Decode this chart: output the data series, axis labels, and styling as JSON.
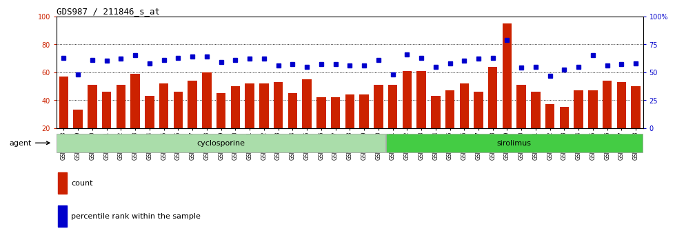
{
  "title": "GDS987 / 211846_s_at",
  "samples": [
    "GSM30418",
    "GSM30419",
    "GSM30420",
    "GSM30421",
    "GSM30422",
    "GSM30423",
    "GSM30424",
    "GSM30425",
    "GSM30426",
    "GSM30427",
    "GSM30428",
    "GSM30429",
    "GSM30430",
    "GSM30431",
    "GSM30432",
    "GSM30433",
    "GSM30434",
    "GSM30435",
    "GSM30436",
    "GSM30437",
    "GSM30438",
    "GSM30439",
    "GSM30440",
    "GSM30441",
    "GSM30442",
    "GSM30443",
    "GSM30444",
    "GSM30445",
    "GSM30446",
    "GSM30447",
    "GSM30448",
    "GSM30449",
    "GSM30450",
    "GSM30451",
    "GSM30452",
    "GSM30453",
    "GSM30454",
    "GSM30455",
    "GSM30456",
    "GSM30457",
    "GSM30458"
  ],
  "counts": [
    57,
    33,
    51,
    46,
    51,
    59,
    43,
    52,
    46,
    54,
    60,
    45,
    50,
    52,
    52,
    53,
    45,
    55,
    42,
    42,
    44,
    44,
    51,
    51,
    61,
    61,
    43,
    47,
    52,
    46,
    64,
    95,
    51,
    46,
    37,
    35,
    47,
    47,
    54,
    53,
    50
  ],
  "percentile_ranks": [
    63,
    48,
    61,
    60,
    62,
    65,
    58,
    61,
    63,
    64,
    64,
    59,
    61,
    62,
    62,
    56,
    57,
    55,
    57,
    57,
    56,
    56,
    61,
    48,
    66,
    63,
    55,
    58,
    60,
    62,
    63,
    79,
    54,
    55,
    47,
    52,
    55,
    65,
    56,
    57,
    58
  ],
  "n_cyclosporine": 23,
  "n_sirolimus": 18,
  "bar_color": "#cc2200",
  "dot_color": "#0000cc",
  "cyclosporine_color": "#aaddaa",
  "sirolimus_color": "#44cc44",
  "left_ylim": [
    20,
    100
  ],
  "right_ylim": [
    0,
    100
  ],
  "left_yticks": [
    20,
    40,
    60,
    80,
    100
  ],
  "right_yticks": [
    0,
    25,
    50,
    75,
    100
  ],
  "right_yticklabels": [
    "0",
    "25",
    "50",
    "75",
    "100%"
  ],
  "hgrid_vals": [
    40,
    60,
    80
  ],
  "title_fontsize": 9,
  "tick_fontsize": 7,
  "xtick_fontsize": 5.5,
  "group_fontsize": 8,
  "legend_fontsize": 8
}
